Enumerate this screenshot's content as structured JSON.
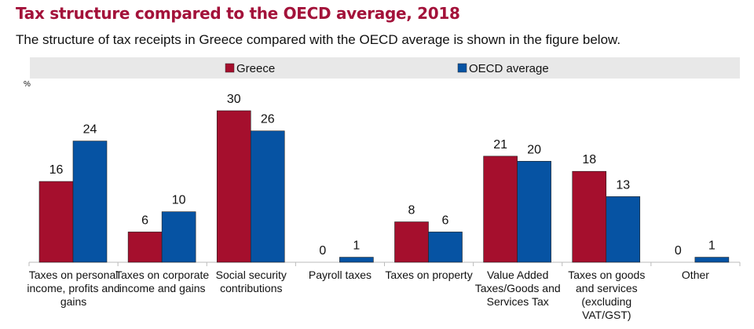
{
  "title": "Tax structure compared to the OECD average, 2018",
  "subtitle": "The structure of tax receipts in Greece compared with the OECD average is shown in the figure below.",
  "chart_data": {
    "type": "bar",
    "title": "Tax structure compared to the OECD average, 2018",
    "ylabel": "%",
    "xlabel": "",
    "ylim": [
      0,
      30
    ],
    "grid": false,
    "legend_placement": "top",
    "categories": [
      [
        "Taxes on personal",
        "income, profits and",
        "gains"
      ],
      [
        "Taxes on corporate",
        "income and gains"
      ],
      [
        "Social security",
        "contributions"
      ],
      [
        "Payroll taxes"
      ],
      [
        "Taxes on property"
      ],
      [
        "Value Added",
        "Taxes/Goods and",
        "Services Tax"
      ],
      [
        "Taxes on goods",
        "and services",
        "(excluding",
        "VAT/GST)"
      ],
      [
        "Other"
      ]
    ],
    "series": [
      {
        "name": "Greece",
        "color": "#a50f2d",
        "values": [
          16,
          6,
          30,
          0,
          8,
          21,
          18,
          0
        ]
      },
      {
        "name": "OECD average",
        "color": "#0653a3",
        "values": [
          24,
          10,
          26,
          1,
          6,
          20,
          13,
          1
        ]
      }
    ]
  }
}
